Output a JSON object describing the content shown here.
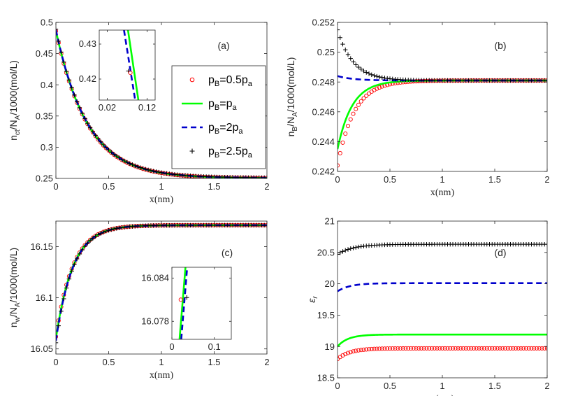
{
  "figure": {
    "background": "#ffffff"
  },
  "styles": {
    "s05": {
      "name": "pB=0.5pa",
      "color": "#ff0000",
      "marker": "circle"
    },
    "s1": {
      "name": "pB=pa",
      "color": "#00ff00",
      "marker": "solid-line"
    },
    "s2": {
      "name": "pB=2pa",
      "color": "#0000cc",
      "marker": "dashed-line"
    },
    "s25": {
      "name": "pB=2.5pa",
      "color": "#000000",
      "marker": "plus"
    }
  },
  "legend": {
    "entries": [
      {
        "key": "s05",
        "main": "p",
        "sub1": "B",
        "mid": "=0.5p",
        "sub2": "a"
      },
      {
        "key": "s1",
        "main": "p",
        "sub1": "B",
        "mid": "=p",
        "sub2": "a"
      },
      {
        "key": "s2",
        "main": "p",
        "sub1": "B",
        "mid": "=2p",
        "sub2": "a"
      },
      {
        "key": "s25",
        "main": "p",
        "sub1": "B",
        "mid": "=2.5p",
        "sub2": "a"
      }
    ]
  },
  "chart_data": [
    {
      "id": "a",
      "type": "line",
      "letter": "(a)",
      "xlabel": "x(nm)",
      "ylabel": {
        "main": "n",
        "sub1": "ct",
        "mid": "/N",
        "sub2": "A",
        "tail": "/1000(mol/L)"
      },
      "xlim": [
        0,
        2
      ],
      "ylim": [
        0.25,
        0.5
      ],
      "xticks": [
        0,
        0.5,
        1,
        1.5,
        2
      ],
      "xticklabels": [
        "0",
        "0.5",
        "1",
        "1.5",
        "2"
      ],
      "yticks": [
        0.25,
        0.3,
        0.35,
        0.4,
        0.45,
        0.5
      ],
      "yticklabels": [
        "0.25",
        "0.3",
        "0.35",
        "0.4",
        "0.45",
        "0.5"
      ],
      "curves": {
        "s05": {
          "start": 0.486,
          "end": 0.2503,
          "tau": 0.3
        },
        "s1": {
          "start": 0.487,
          "end": 0.2505,
          "tau": 0.3
        },
        "s2": {
          "start": 0.488,
          "end": 0.2507,
          "tau": 0.3
        },
        "s25": {
          "start": 0.489,
          "end": 0.2508,
          "tau": 0.3
        }
      },
      "inset": {
        "xlim": [
          0,
          0.14
        ],
        "ylim": [
          0.414,
          0.434
        ],
        "xticks": [
          0.02,
          0.12
        ],
        "xticklabels": [
          "0.02",
          "0.12"
        ],
        "yticks": [
          0.42,
          0.43
        ],
        "yticklabels": [
          "0.42",
          "0.43"
        ],
        "lines": {
          "s1": {
            "x": [
              0.072,
              0.098
            ],
            "y": [
              0.434,
              0.414
            ]
          },
          "s2": {
            "x": [
              0.062,
              0.09
            ],
            "y": [
              0.434,
              0.414
            ]
          }
        },
        "points": {
          "s25": [
            {
              "x": 0.073,
              "y": 0.4223
            }
          ],
          "s05": [
            {
              "x": 0.078,
              "y": 0.4218
            }
          ]
        }
      }
    },
    {
      "id": "b",
      "type": "line",
      "letter": "(b)",
      "xlabel": "x(nm)",
      "ylabel": {
        "main": "n",
        "sub1": "B",
        "mid": "/N",
        "sub2": "A",
        "tail": "/1000(mol/L)"
      },
      "xlim": [
        0,
        2
      ],
      "ylim": [
        0.242,
        0.252
      ],
      "xticks": [
        0,
        0.5,
        1,
        1.5,
        2
      ],
      "xticklabels": [
        "0",
        "0.5",
        "1",
        "1.5",
        "2"
      ],
      "yticks": [
        0.242,
        0.244,
        0.246,
        0.248,
        0.25,
        0.252
      ],
      "yticklabels": [
        "0.242",
        "0.244",
        "0.246",
        "0.248",
        "0.25",
        "0.252"
      ],
      "curves": {
        "s05": {
          "start": 0.2424,
          "end": 0.2481,
          "tau": 0.16
        },
        "s1": {
          "start": 0.2435,
          "end": 0.2481,
          "tau": 0.14
        },
        "s2": {
          "start": 0.2484,
          "end": 0.2481,
          "tau": 0.15
        },
        "s25": {
          "start": 0.2515,
          "end": 0.2481,
          "tau": 0.15
        }
      }
    },
    {
      "id": "c",
      "type": "line",
      "letter": "(c)",
      "xlabel": "x(nm)",
      "ylabel": {
        "main": "n",
        "sub1": "w",
        "mid": "/N",
        "sub2": "A",
        "tail": "/1000(mol/L)"
      },
      "xlim": [
        0,
        2
      ],
      "ylim": [
        16.045,
        16.175
      ],
      "xticks": [
        0,
        0.5,
        1,
        1.5,
        2
      ],
      "xticklabels": [
        "0",
        "0.5",
        "1",
        "1.5",
        "2"
      ],
      "yticks": [
        16.05,
        16.1,
        16.15
      ],
      "yticklabels": [
        "16.05",
        "16.1",
        "16.15"
      ],
      "curves": {
        "s05": {
          "start": 16.062,
          "end": 16.171,
          "tau": 0.16
        },
        "s1": {
          "start": 16.06,
          "end": 16.171,
          "tau": 0.16
        },
        "s2": {
          "start": 16.058,
          "end": 16.171,
          "tau": 0.16
        },
        "s25": {
          "start": 16.056,
          "end": 16.171,
          "tau": 0.16
        }
      },
      "inset": {
        "xlim": [
          0,
          0.14
        ],
        "ylim": [
          16.0755,
          16.0855
        ],
        "xticks": [
          0,
          0.1
        ],
        "xticklabels": [
          "0",
          "0.1"
        ],
        "yticks": [
          16.078,
          16.084
        ],
        "yticklabels": [
          "16.078",
          "16.084"
        ],
        "lines": {
          "s1": {
            "x": [
              0.018,
              0.032
            ],
            "y": [
              16.0755,
              16.0855
            ]
          },
          "s2": {
            "x": [
              0.022,
              0.036
            ],
            "y": [
              16.0755,
              16.0855
            ]
          }
        },
        "points": {
          "s05": [
            {
              "x": 0.021,
              "y": 16.081
            }
          ],
          "s25": [
            {
              "x": 0.035,
              "y": 16.0813
            }
          ]
        }
      }
    },
    {
      "id": "d",
      "type": "line",
      "letter": "(d)",
      "xlabel": "x(nm)",
      "ylabel": {
        "symbol": "ε",
        "sub": "r"
      },
      "xlim": [
        0,
        2
      ],
      "ylim": [
        18.5,
        21
      ],
      "xticks": [
        0,
        0.5,
        1,
        1.5,
        2
      ],
      "xticklabels": [
        "0",
        "0.5",
        "1",
        "1.5",
        "2"
      ],
      "yticks": [
        18.5,
        19,
        19.5,
        20,
        20.5,
        21
      ],
      "yticklabels": [
        "18.5",
        "19",
        "19.5",
        "20",
        "20.5",
        "21"
      ],
      "curves": {
        "s05": {
          "start": 18.8,
          "end": 18.97,
          "tau": 0.12
        },
        "s1": {
          "start": 19.0,
          "end": 19.19,
          "tau": 0.1
        },
        "s2": {
          "start": 19.88,
          "end": 20.01,
          "tau": 0.12
        },
        "s25": {
          "start": 20.47,
          "end": 20.63,
          "tau": 0.15
        }
      },
      "plotOrder": [
        "s05",
        "s1",
        "s2",
        "s25"
      ]
    }
  ]
}
